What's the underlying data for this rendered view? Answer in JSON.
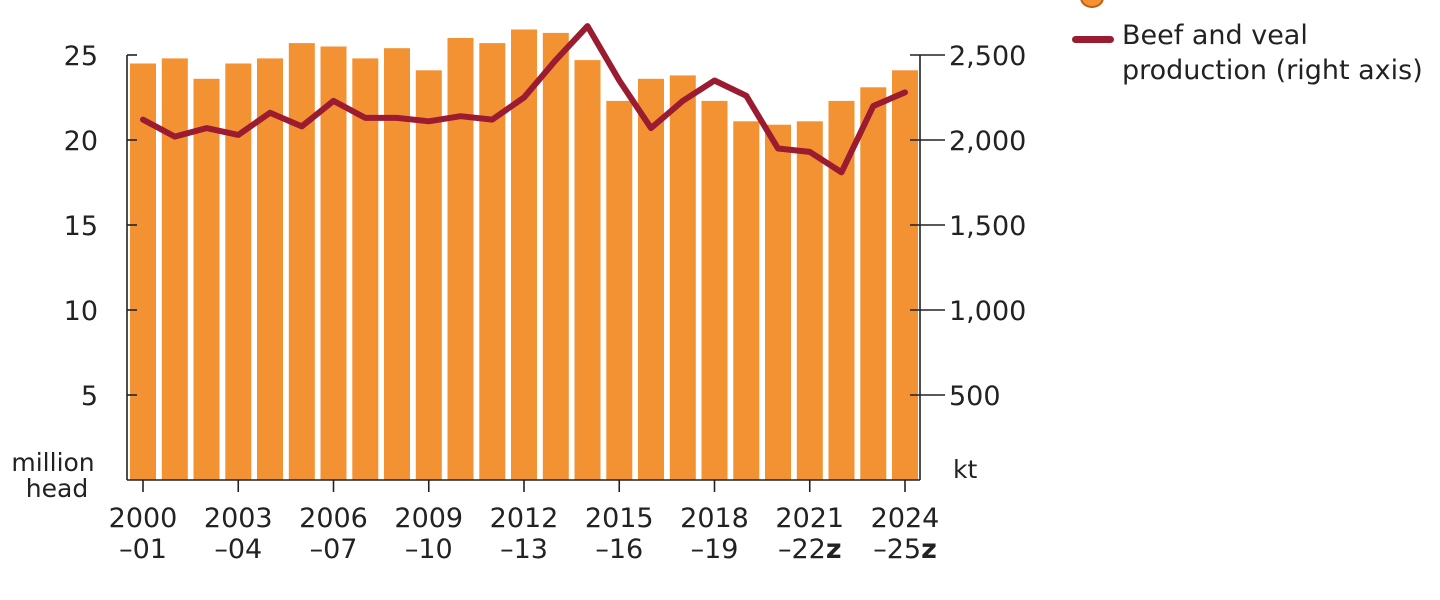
{
  "chart_data": {
    "type": "bar",
    "y_unit_left": "million\nhead",
    "y_unit_right": "kt",
    "y_ticks_left": [
      "5",
      "10",
      "15",
      "20",
      "25"
    ],
    "y_ticks_right": [
      "500",
      "1,000",
      "1,500",
      "2,000",
      "2,500"
    ],
    "ylim_left": [
      0,
      25
    ],
    "ylim_right": [
      0,
      2500
    ],
    "grid": false,
    "x_tick_labels": [
      {
        "year": "2000",
        "span": "–01"
      },
      {
        "year": "2003",
        "span": "–04"
      },
      {
        "year": "2006",
        "span": "–07"
      },
      {
        "year": "2009",
        "span": "–10"
      },
      {
        "year": "2012",
        "span": "–13"
      },
      {
        "year": "2015",
        "span": "–16"
      },
      {
        "year": "2018",
        "span": "–19"
      },
      {
        "year": "2021",
        "span": "–22",
        "mark": "z"
      },
      {
        "year": "2024",
        "span": "–25",
        "mark": "z"
      }
    ],
    "categories": [
      "2000–01",
      "2001–02",
      "2002–03",
      "2003–04",
      "2004–05",
      "2005–06",
      "2006–07",
      "2007–08",
      "2008–09",
      "2009–10",
      "2010–11",
      "2011–12",
      "2012–13",
      "2013–14",
      "2014–15",
      "2015–16",
      "2016–17",
      "2017–18",
      "2018–19",
      "2019–20",
      "2020–21",
      "2021–22",
      "2022–23",
      "2023–24",
      "2024–25"
    ],
    "series": [
      {
        "axis": "left",
        "kind": "bar",
        "color": "#F39232",
        "values": [
          24.5,
          24.8,
          23.6,
          24.5,
          24.8,
          25.7,
          25.5,
          24.8,
          25.4,
          24.1,
          26.0,
          25.7,
          26.5,
          26.3,
          24.7,
          22.3,
          23.6,
          23.8,
          22.3,
          21.1,
          20.9,
          21.1,
          22.3,
          23.1,
          24.1
        ]
      },
      {
        "axis": "right",
        "kind": "line",
        "name": "Beef and veal\nproduction (right axis)",
        "color": "#9B1B30",
        "values": [
          2120,
          2020,
          2070,
          2030,
          2160,
          2080,
          2230,
          2130,
          2130,
          2110,
          2140,
          2120,
          2250,
          2470,
          2670,
          2350,
          2070,
          2230,
          2350,
          2260,
          1950,
          1930,
          1810,
          2200,
          2280
        ]
      }
    ]
  }
}
